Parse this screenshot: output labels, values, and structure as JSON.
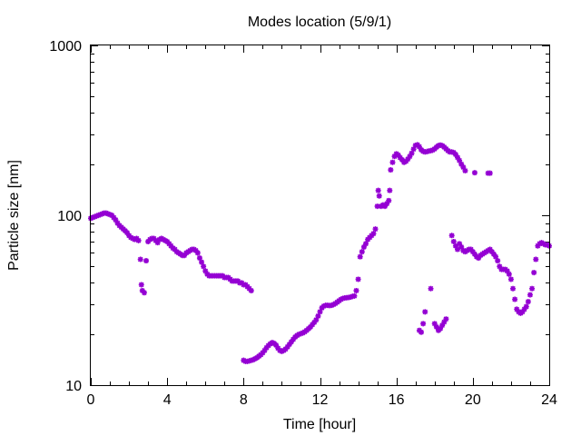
{
  "chart_data": {
    "type": "scatter",
    "title": "Modes location (5/9/1)",
    "xlabel": "Time [hour]",
    "ylabel": "Particle size [nm]",
    "xlim": [
      0,
      24
    ],
    "ylim": [
      10,
      1000
    ],
    "yscale": "log",
    "xticks": [
      0,
      4,
      8,
      12,
      16,
      20,
      24
    ],
    "yticks": [
      10,
      100,
      1000
    ],
    "ytick_labels": [
      "10",
      "100",
      "1000"
    ],
    "grid": false,
    "legend": "none",
    "marker_color": "#9400D3",
    "series": [
      {
        "points": [
          [
            0.0,
            96
          ],
          [
            0.1,
            97
          ],
          [
            0.2,
            98
          ],
          [
            0.3,
            99
          ],
          [
            0.4,
            100
          ],
          [
            0.5,
            101
          ],
          [
            0.6,
            102
          ],
          [
            0.7,
            103
          ],
          [
            0.8,
            103
          ],
          [
            0.9,
            102
          ],
          [
            1.0,
            101
          ],
          [
            1.1,
            100
          ],
          [
            1.2,
            97
          ],
          [
            1.3,
            94
          ],
          [
            1.4,
            90
          ],
          [
            1.5,
            87
          ],
          [
            1.6,
            85
          ],
          [
            1.7,
            83
          ],
          [
            1.8,
            81
          ],
          [
            1.9,
            79
          ],
          [
            2.0,
            76
          ],
          [
            2.1,
            74
          ],
          [
            2.2,
            73
          ],
          [
            2.3,
            72
          ],
          [
            2.4,
            73
          ],
          [
            2.5,
            71
          ],
          [
            2.6,
            55
          ],
          [
            2.65,
            39
          ],
          [
            2.7,
            36
          ],
          [
            2.8,
            35
          ],
          [
            2.9,
            54
          ],
          [
            3.0,
            70
          ],
          [
            3.1,
            72
          ],
          [
            3.2,
            73
          ],
          [
            3.3,
            73
          ],
          [
            3.4,
            71
          ],
          [
            3.5,
            69
          ],
          [
            3.6,
            72
          ],
          [
            3.7,
            73
          ],
          [
            3.8,
            72
          ],
          [
            3.9,
            71
          ],
          [
            4.0,
            70
          ],
          [
            4.1,
            68
          ],
          [
            4.2,
            66
          ],
          [
            4.3,
            64
          ],
          [
            4.4,
            63
          ],
          [
            4.5,
            61
          ],
          [
            4.6,
            60
          ],
          [
            4.7,
            59
          ],
          [
            4.8,
            58
          ],
          [
            4.9,
            58
          ],
          [
            5.0,
            60
          ],
          [
            5.1,
            61
          ],
          [
            5.2,
            62
          ],
          [
            5.3,
            63
          ],
          [
            5.4,
            63
          ],
          [
            5.5,
            62
          ],
          [
            5.6,
            60
          ],
          [
            5.7,
            56
          ],
          [
            5.8,
            53
          ],
          [
            5.9,
            50
          ],
          [
            6.0,
            47
          ],
          [
            6.1,
            45
          ],
          [
            6.2,
            44
          ],
          [
            6.3,
            44
          ],
          [
            6.4,
            44
          ],
          [
            6.5,
            44
          ],
          [
            6.6,
            44
          ],
          [
            6.7,
            44
          ],
          [
            6.8,
            44
          ],
          [
            6.9,
            44
          ],
          [
            7.0,
            43
          ],
          [
            7.1,
            43
          ],
          [
            7.2,
            43
          ],
          [
            7.3,
            42
          ],
          [
            7.4,
            41
          ],
          [
            7.5,
            41
          ],
          [
            7.6,
            41
          ],
          [
            7.7,
            41
          ],
          [
            7.8,
            40
          ],
          [
            7.9,
            40
          ],
          [
            8.0,
            39
          ],
          [
            8.1,
            39
          ],
          [
            8.2,
            38
          ],
          [
            8.3,
            37
          ],
          [
            8.4,
            36
          ]
        ]
      },
      {
        "points": [
          [
            8.0,
            14
          ],
          [
            8.1,
            13.8
          ],
          [
            8.2,
            13.8
          ],
          [
            8.3,
            13.9
          ],
          [
            8.4,
            14.0
          ],
          [
            8.5,
            14.1
          ],
          [
            8.6,
            14.3
          ],
          [
            8.7,
            14.5
          ],
          [
            8.8,
            14.8
          ],
          [
            8.9,
            15.1
          ],
          [
            9.0,
            15.5
          ],
          [
            9.1,
            16.0
          ],
          [
            9.2,
            16.6
          ],
          [
            9.3,
            17.1
          ],
          [
            9.4,
            17.5
          ],
          [
            9.5,
            17.8
          ],
          [
            9.6,
            17.6
          ],
          [
            9.7,
            17.2
          ],
          [
            9.8,
            16.5
          ],
          [
            9.9,
            16.0
          ],
          [
            10.0,
            15.8
          ],
          [
            10.1,
            16.0
          ],
          [
            10.2,
            16.3
          ],
          [
            10.3,
            16.8
          ],
          [
            10.4,
            17.4
          ],
          [
            10.5,
            18.0
          ],
          [
            10.6,
            18.6
          ],
          [
            10.7,
            19.2
          ],
          [
            10.8,
            19.6
          ],
          [
            10.9,
            19.9
          ],
          [
            11.0,
            20.1
          ],
          [
            11.1,
            20.3
          ],
          [
            11.2,
            20.6
          ],
          [
            11.3,
            21.0
          ],
          [
            11.4,
            21.5
          ],
          [
            11.5,
            22.0
          ],
          [
            11.6,
            22.7
          ],
          [
            11.7,
            23.4
          ],
          [
            11.8,
            24.2
          ],
          [
            11.9,
            25.5
          ],
          [
            12.0,
            27.0
          ],
          [
            12.1,
            28.5
          ],
          [
            12.2,
            29.2
          ],
          [
            12.3,
            29.5
          ],
          [
            12.4,
            29.5
          ],
          [
            12.5,
            29.4
          ],
          [
            12.6,
            29.5
          ],
          [
            12.7,
            29.8
          ],
          [
            12.8,
            30.2
          ],
          [
            12.9,
            30.8
          ],
          [
            13.0,
            31.4
          ],
          [
            13.1,
            32.0
          ],
          [
            13.2,
            32.4
          ],
          [
            13.3,
            32.6
          ],
          [
            13.4,
            32.7
          ],
          [
            13.5,
            32.8
          ],
          [
            13.6,
            33.0
          ],
          [
            13.7,
            33.3
          ],
          [
            13.8,
            33.5
          ],
          [
            13.9,
            36
          ],
          [
            14.0,
            42
          ],
          [
            14.1,
            57
          ],
          [
            14.2,
            61
          ],
          [
            14.3,
            65
          ],
          [
            14.4,
            68
          ],
          [
            14.5,
            72
          ],
          [
            14.6,
            74
          ],
          [
            14.7,
            76
          ],
          [
            14.8,
            78
          ],
          [
            14.9,
            83
          ],
          [
            15.0,
            113
          ],
          [
            15.05,
            140
          ],
          [
            15.1,
            130
          ],
          [
            15.2,
            113
          ],
          [
            15.3,
            115
          ],
          [
            15.4,
            113
          ],
          [
            15.5,
            117
          ],
          [
            15.6,
            122
          ],
          [
            15.65,
            140
          ],
          [
            15.7,
            185
          ],
          [
            15.8,
            205
          ],
          [
            15.9,
            222
          ],
          [
            16.0,
            230
          ],
          [
            16.1,
            226
          ],
          [
            16.2,
            218
          ],
          [
            16.3,
            212
          ],
          [
            16.4,
            205
          ],
          [
            16.5,
            208
          ],
          [
            16.6,
            214
          ],
          [
            16.7,
            222
          ],
          [
            16.8,
            232
          ],
          [
            16.9,
            245
          ],
          [
            17.0,
            258
          ],
          [
            17.1,
            260
          ],
          [
            17.2,
            253
          ],
          [
            17.3,
            243
          ],
          [
            17.4,
            238
          ],
          [
            17.5,
            236
          ],
          [
            17.6,
            237
          ],
          [
            17.7,
            239
          ],
          [
            17.8,
            240
          ],
          [
            17.9,
            242
          ],
          [
            18.0,
            246
          ],
          [
            18.1,
            252
          ],
          [
            18.2,
            257
          ],
          [
            18.3,
            259
          ],
          [
            18.4,
            257
          ],
          [
            18.5,
            252
          ],
          [
            18.6,
            246
          ],
          [
            18.7,
            240
          ],
          [
            18.8,
            236
          ],
          [
            18.9,
            236
          ],
          [
            19.0,
            234
          ],
          [
            19.1,
            228
          ],
          [
            19.2,
            219
          ],
          [
            19.3,
            210
          ],
          [
            19.4,
            200
          ],
          [
            19.5,
            192
          ],
          [
            19.6,
            183
          ],
          [
            20.1,
            178
          ],
          [
            20.8,
            177
          ],
          [
            20.9,
            177
          ]
        ]
      },
      {
        "points": [
          [
            17.2,
            21
          ],
          [
            17.3,
            20.5
          ],
          [
            17.4,
            23
          ],
          [
            17.5,
            27
          ],
          [
            17.8,
            37
          ],
          [
            18.0,
            23
          ],
          [
            18.1,
            22
          ],
          [
            18.2,
            21
          ],
          [
            18.3,
            21.5
          ],
          [
            18.4,
            22.5
          ],
          [
            18.5,
            23.5
          ],
          [
            18.6,
            24.5
          ],
          [
            18.9,
            76
          ],
          [
            19.0,
            70
          ],
          [
            19.1,
            66
          ],
          [
            19.2,
            63
          ],
          [
            19.3,
            68
          ],
          [
            19.4,
            65
          ],
          [
            19.5,
            62
          ],
          [
            19.6,
            61
          ],
          [
            19.7,
            62
          ],
          [
            19.8,
            63
          ],
          [
            19.9,
            63
          ],
          [
            20.0,
            61
          ],
          [
            20.1,
            59
          ],
          [
            20.2,
            57
          ],
          [
            20.3,
            56
          ],
          [
            20.4,
            58
          ],
          [
            20.5,
            59
          ],
          [
            20.6,
            60
          ],
          [
            20.7,
            61
          ],
          [
            20.8,
            62
          ],
          [
            20.9,
            63
          ],
          [
            21.0,
            61
          ],
          [
            21.1,
            59
          ],
          [
            21.2,
            57
          ],
          [
            21.3,
            54
          ],
          [
            21.4,
            50
          ],
          [
            21.5,
            48
          ],
          [
            21.6,
            48
          ],
          [
            21.7,
            48
          ],
          [
            21.8,
            47
          ],
          [
            21.9,
            45
          ],
          [
            22.0,
            42
          ],
          [
            22.1,
            37
          ],
          [
            22.2,
            32
          ],
          [
            22.3,
            28
          ],
          [
            22.4,
            27
          ],
          [
            22.5,
            26.5
          ],
          [
            22.6,
            27
          ],
          [
            22.7,
            28
          ],
          [
            22.8,
            29
          ],
          [
            22.9,
            31
          ],
          [
            23.0,
            34
          ],
          [
            23.1,
            37
          ],
          [
            23.2,
            46
          ],
          [
            23.3,
            55
          ],
          [
            23.4,
            66
          ],
          [
            23.5,
            68
          ],
          [
            23.6,
            69
          ],
          [
            23.7,
            68
          ],
          [
            23.8,
            67
          ],
          [
            23.9,
            67
          ],
          [
            24.0,
            66
          ]
        ]
      }
    ]
  }
}
